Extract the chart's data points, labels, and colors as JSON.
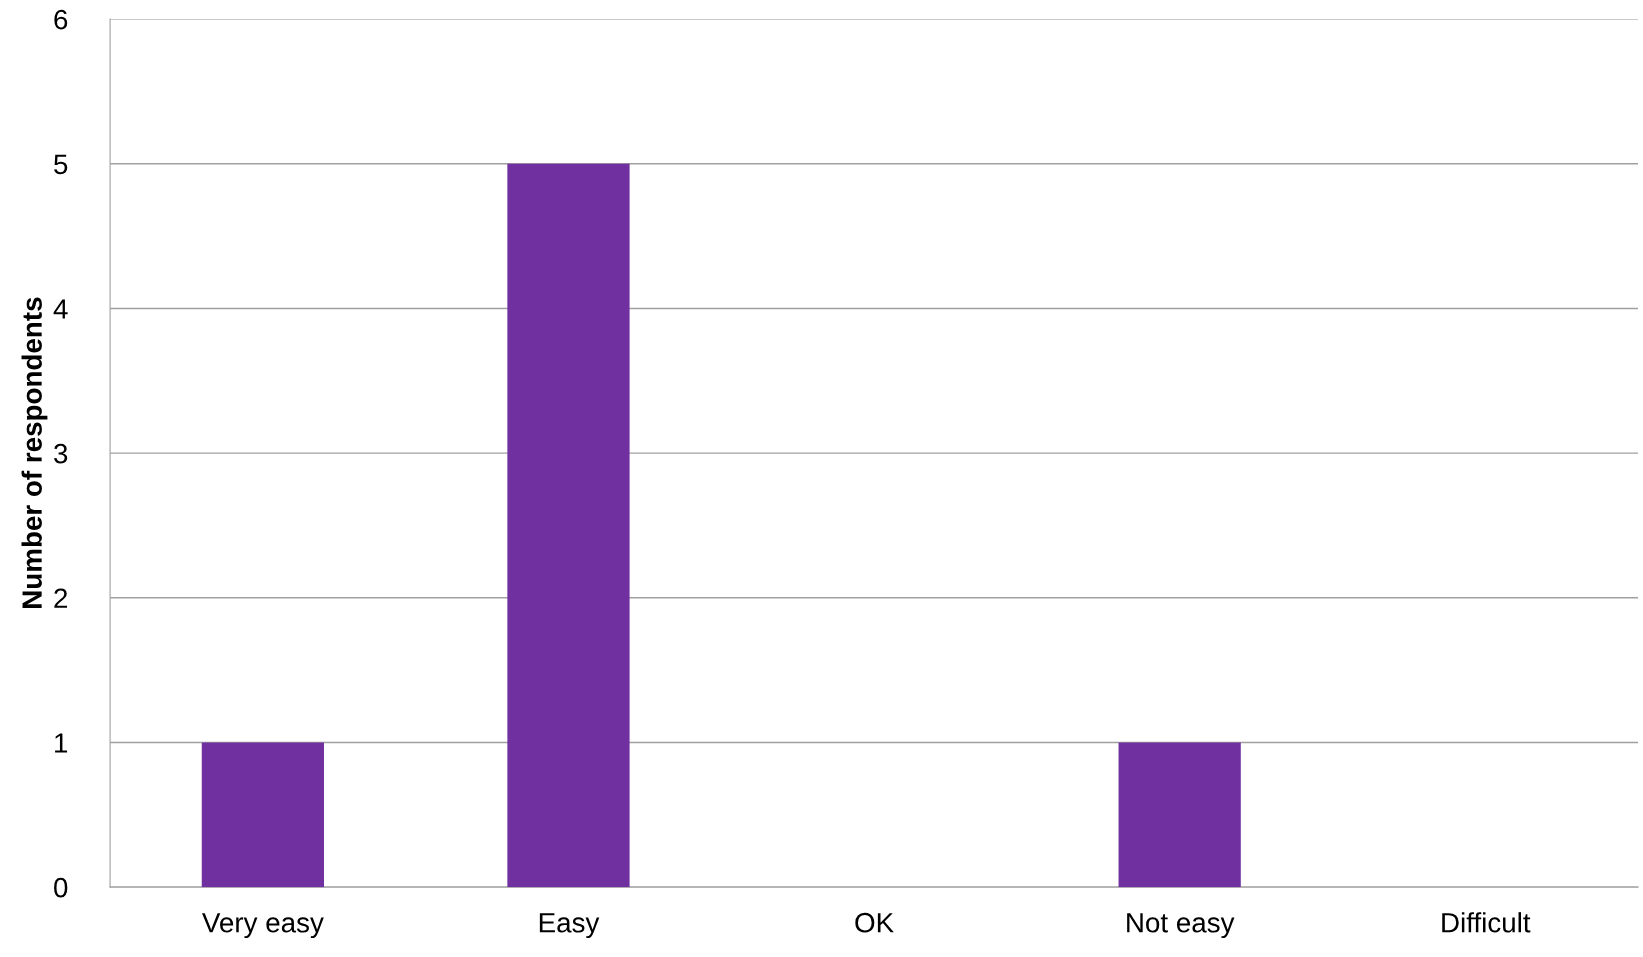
{
  "chart_data": {
    "type": "bar",
    "ylabel": "Number of respondents",
    "categories": [
      "Very easy",
      "Easy",
      "OK",
      "Not easy",
      "Difficult"
    ],
    "values": [
      1,
      5,
      0,
      1,
      0
    ],
    "color": "#7030a0",
    "ylim": [
      0,
      6
    ],
    "yticks": [
      0,
      1,
      2,
      3,
      4,
      5,
      6
    ],
    "grid": "y"
  }
}
